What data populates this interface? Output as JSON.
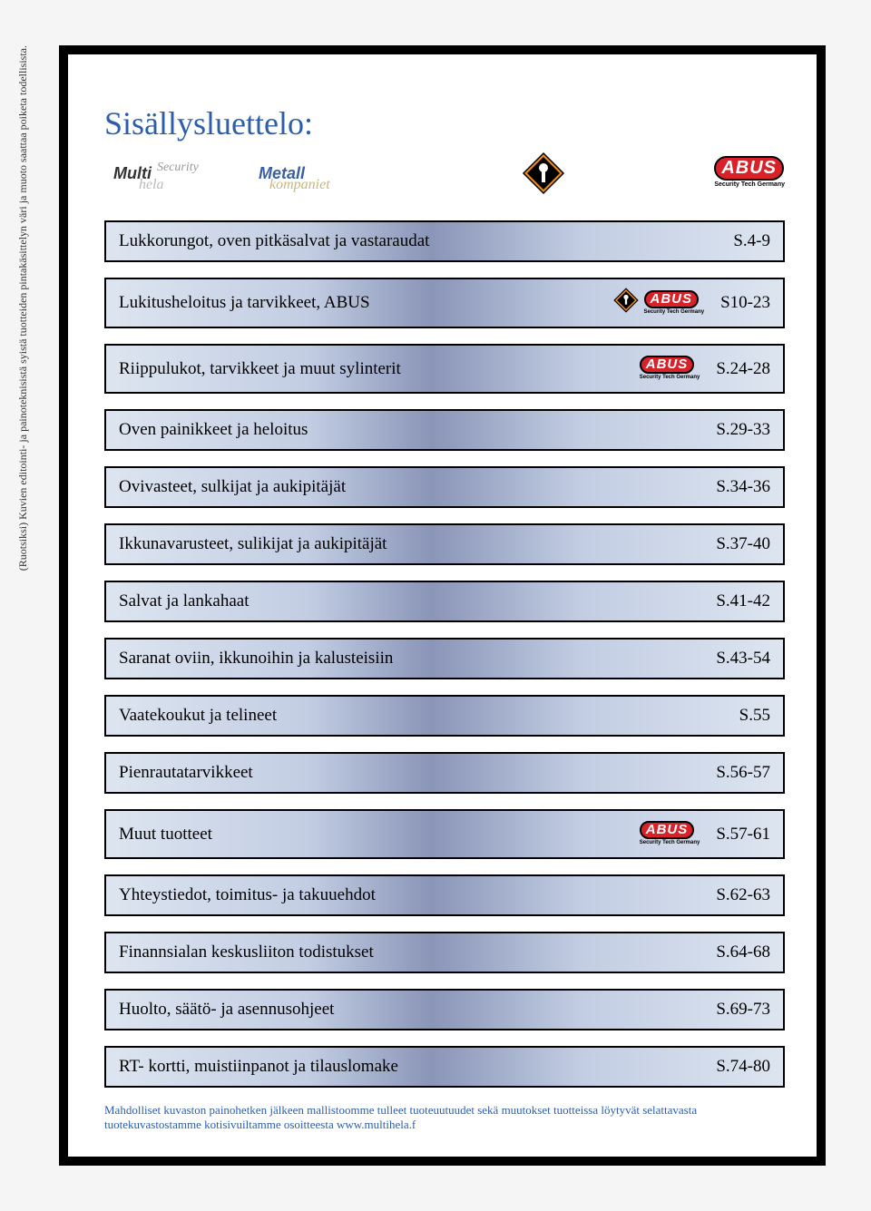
{
  "side_note": "(Ruotsiksi) Kuvien editointi- ja painoteknisistä syistä tuotteiden pintakäsittelyn väri ja muoto saattaa poiketa todellisista.",
  "title": "Sisällysluettelo:",
  "logos": {
    "multi": "Multi",
    "multi_sec": "Security",
    "multi_hela": "hela",
    "metall": "Metall",
    "metall_sub": "kompaniet",
    "abus": "ABUS",
    "abus_sub": "Security Tech Germany"
  },
  "rows": [
    {
      "label": "Lukkorungot, oven pitkäsalvat ja vastaraudat",
      "page": "S.4-9",
      "icons": []
    },
    {
      "label": "Lukitusheloitus ja tarvikkeet, ABUS",
      "page": "S10-23",
      "icons": [
        "diamond",
        "abus"
      ]
    },
    {
      "label": "Riippulukot, tarvikkeet ja muut sylinterit",
      "page": "S.24-28",
      "icons": [
        "abus"
      ]
    },
    {
      "label": "Oven painikkeet ja heloitus",
      "page": "S.29-33",
      "icons": []
    },
    {
      "label": "Ovivasteet, sulkijat  ja aukipitäjät",
      "page": "S.34-36",
      "icons": []
    },
    {
      "label": "Ikkunavarusteet, sulikijat ja aukipitäjät",
      "page": "S.37-40",
      "icons": []
    },
    {
      "label": "Salvat ja lankahaat",
      "page": "S.41-42",
      "icons": []
    },
    {
      "label": "Saranat oviin, ikkunoihin ja kalusteisiin",
      "page": "S.43-54",
      "icons": []
    },
    {
      "label": "Vaatekoukut ja telineet",
      "page": "S.55",
      "icons": []
    },
    {
      "label": "Pienrautatarvikkeet",
      "page": "S.56-57",
      "icons": []
    },
    {
      "label": "Muut tuotteet",
      "page": "S.57-61",
      "icons": [
        "abus"
      ]
    },
    {
      "label": "Yhteystiedot, toimitus- ja takuuehdot",
      "page": "S.62-63",
      "icons": []
    },
    {
      "label": "Finannsialan keskusliiton todistukset",
      "page": "S.64-68",
      "icons": []
    },
    {
      "label": "Huolto, säätö- ja asennusohjeet",
      "page": "S.69-73",
      "icons": []
    },
    {
      "label": "RT- kortti, muistiinpanot ja tilauslomake",
      "page": "S.74-80",
      "icons": []
    }
  ],
  "footer": "Mahdolliset kuvaston painohetken jälkeen mallistoomme tulleet tuoteuutuudet sekä muutokset tuotteissa löytyvät selattavasta tuotekuvastostamme kotisivuiltamme osoitteesta www.multihela.f",
  "styles": {
    "page_bg": "#ffffff",
    "border_color": "#000000",
    "title_color": "#2e5ea8",
    "row_gradient": [
      "#dde5f0",
      "#c2cde3",
      "#8a95b8",
      "#c2cde3",
      "#dde5f0"
    ],
    "abus_red": "#d82128",
    "diamond_orange": "#f08c1e",
    "footer_color": "#2e5ea8",
    "title_fontsize": 36,
    "row_fontsize": 19,
    "footer_fontsize": 13
  }
}
